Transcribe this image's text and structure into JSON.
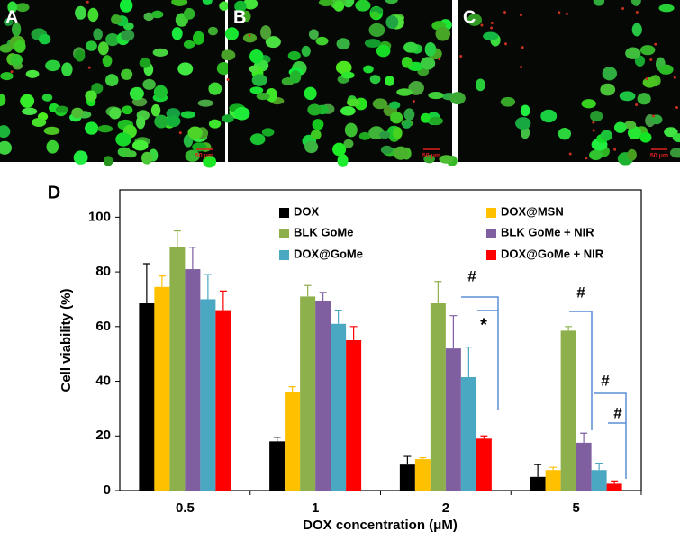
{
  "panels": [
    {
      "label": "A",
      "scale_bar": "50 μm"
    },
    {
      "label": "B",
      "scale_bar": "50 μm"
    },
    {
      "label": "C",
      "scale_bar": "50 μm"
    }
  ],
  "chart_data": {
    "type": "bar",
    "panel_label": "D",
    "xlabel": "DOX concentration (μM)",
    "ylabel": "Cell viability (%)",
    "categories": [
      "0.5",
      "1",
      "2",
      "5"
    ],
    "series": [
      {
        "name": "DOX",
        "color": "#000000",
        "values": [
          68.5,
          18,
          9.5,
          5
        ],
        "errors": [
          14.5,
          1.5,
          3,
          4.5
        ]
      },
      {
        "name": "DOX@MSN",
        "color": "#ffc000",
        "values": [
          74.5,
          36,
          11.5,
          7.5
        ],
        "errors": [
          4,
          2,
          0.5,
          1
        ]
      },
      {
        "name": "BLK GoMe",
        "color": "#8eb04c",
        "values": [
          89,
          71,
          68.5,
          58.5
        ],
        "errors": [
          6,
          4,
          8,
          1.5
        ]
      },
      {
        "name": "BLK GoMe + NIR",
        "color": "#7f5fa0",
        "values": [
          81,
          69.5,
          52,
          17.5
        ],
        "errors": [
          8,
          3,
          12,
          3.5
        ]
      },
      {
        "name": "DOX@GoMe",
        "color": "#4aa8c2",
        "values": [
          70,
          61,
          41.5,
          7.5
        ],
        "errors": [
          9,
          5,
          11,
          2.5
        ]
      },
      {
        "name": "DOX@GoMe + NIR",
        "color": "#ff0000",
        "values": [
          66,
          55,
          19,
          2.5
        ],
        "errors": [
          7,
          5,
          1,
          1
        ]
      }
    ],
    "annotations": [
      "#",
      "*",
      "#",
      "#",
      "#"
    ],
    "ylim": [
      0,
      110
    ],
    "yticks": [
      0,
      20,
      40,
      60,
      80,
      100
    ]
  }
}
